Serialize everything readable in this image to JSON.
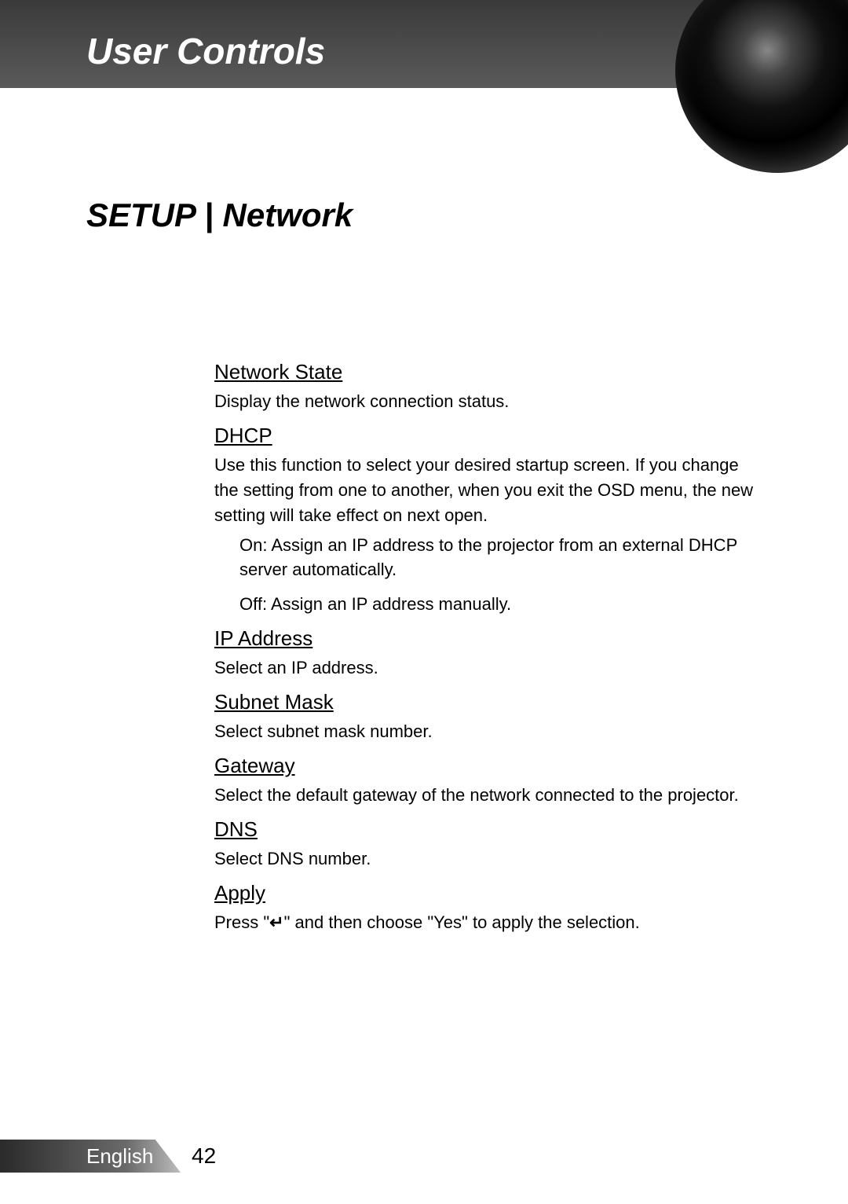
{
  "header": {
    "title": "User Controls"
  },
  "page": {
    "title": "SETUP | Network"
  },
  "sections": {
    "network_state": {
      "title": "Network State",
      "body": "Display the network connection status."
    },
    "dhcp": {
      "title": "DHCP",
      "body": "Use this function to select your desired startup screen. If you change the setting from one to another, when you exit the OSD menu, the new setting will take effect on next open.",
      "on": "On: Assign an IP address to the projector from an external DHCP server automatically.",
      "off": "Off: Assign an IP address manually."
    },
    "ip_address": {
      "title": "IP Address",
      "body": "Select an IP address."
    },
    "subnet_mask": {
      "title": "Subnet Mask",
      "body": "Select subnet mask number."
    },
    "gateway": {
      "title": "Gateway",
      "body": "Select the default gateway of the network connected to the projector."
    },
    "dns": {
      "title": "DNS",
      "body": "Select DNS number."
    },
    "apply": {
      "title": "Apply",
      "body_pre": "Press \"",
      "body_post": "\" and then choose \"Yes\" to apply the selection."
    }
  },
  "footer": {
    "language": "English",
    "page_number": "42"
  },
  "style": {
    "text_color": "#000000",
    "header_text_color": "#ffffff",
    "title_fontsize": 46,
    "page_title_fontsize": 42,
    "section_title_fontsize": 26,
    "body_fontsize": 22
  }
}
